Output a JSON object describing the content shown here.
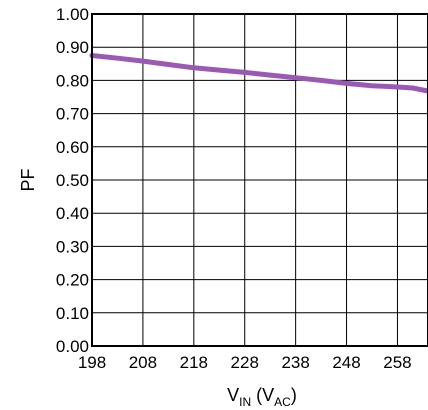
{
  "chart_data": {
    "type": "line",
    "xlabel_main": "V",
    "xlabel_sub": "IN",
    "xlabel_paren_open": " (V",
    "xlabel_unit_sub": "AC",
    "xlabel_paren_close": ")",
    "ylabel": "PF",
    "xlim": [
      198,
      264
    ],
    "ylim": [
      0,
      1.0
    ],
    "x_ticks": [
      198,
      208,
      218,
      228,
      238,
      248,
      258
    ],
    "x_tick_labels": [
      "198",
      "208",
      "218",
      "228",
      "238",
      "248",
      "258"
    ],
    "y_ticks": [
      0,
      0.1,
      0.2,
      0.3,
      0.4,
      0.5,
      0.6,
      0.7,
      0.8,
      0.9,
      1.0
    ],
    "y_tick_labels": [
      "0.00",
      "0.10",
      "0.20",
      "0.30",
      "0.40",
      "0.50",
      "0.60",
      "0.70",
      "0.80",
      "0.90",
      "1.00"
    ],
    "x_gridlines": [
      198,
      208,
      218,
      228,
      238,
      248,
      258
    ],
    "grid": true,
    "series": [
      {
        "color": "#9b59b6",
        "x": [
          198,
          203,
          208,
          213,
          218,
          223,
          228,
          233,
          238,
          243,
          248,
          253,
          258,
          261,
          264
        ],
        "y": [
          0.875,
          0.867,
          0.858,
          0.848,
          0.838,
          0.831,
          0.824,
          0.816,
          0.808,
          0.8,
          0.791,
          0.784,
          0.78,
          0.777,
          0.768
        ]
      }
    ]
  }
}
